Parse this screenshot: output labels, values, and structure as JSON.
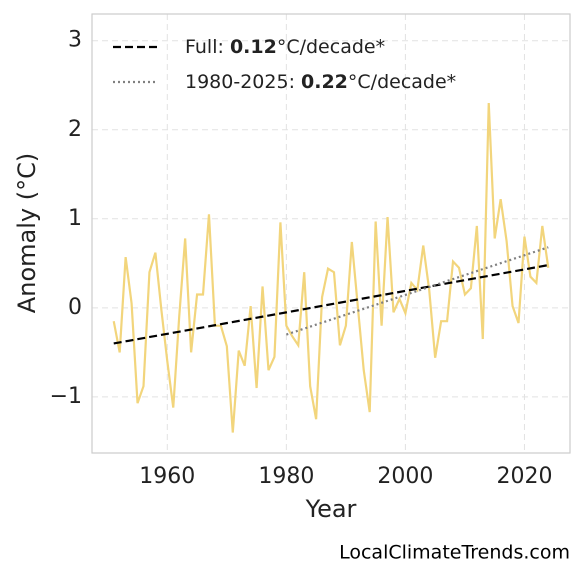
{
  "chart_data": {
    "type": "line",
    "xlabel": "Year",
    "ylabel": "Anomaly (°C)",
    "source": "LocalClimateTrends.com",
    "x": [
      1951,
      1952,
      1953,
      1954,
      1955,
      1956,
      1957,
      1958,
      1959,
      1960,
      1961,
      1962,
      1963,
      1964,
      1965,
      1966,
      1967,
      1968,
      1969,
      1970,
      1971,
      1972,
      1973,
      1974,
      1975,
      1976,
      1977,
      1978,
      1979,
      1980,
      1981,
      1982,
      1983,
      1984,
      1985,
      1986,
      1987,
      1988,
      1989,
      1990,
      1991,
      1992,
      1993,
      1994,
      1995,
      1996,
      1997,
      1998,
      1999,
      2000,
      2001,
      2002,
      2003,
      2004,
      2005,
      2006,
      2007,
      2008,
      2009,
      2010,
      2011,
      2012,
      2013,
      2014,
      2015,
      2016,
      2017,
      2018,
      2019,
      2020,
      2021,
      2022,
      2023,
      2024
    ],
    "series": [
      {
        "color": "#f2d57c",
        "style": "solid",
        "values": [
          -0.15,
          -0.5,
          0.57,
          0.05,
          -1.07,
          -0.88,
          0.4,
          0.62,
          -0.02,
          -0.6,
          -1.12,
          -0.1,
          0.78,
          -0.5,
          0.15,
          0.15,
          1.05,
          -0.2,
          -0.2,
          -0.43,
          -1.4,
          -0.48,
          -0.65,
          0.02,
          -0.9,
          0.24,
          -0.7,
          -0.55,
          0.96,
          -0.2,
          -0.32,
          -0.42,
          0.4,
          -0.88,
          -1.25,
          0.12,
          0.44,
          0.4,
          -0.42,
          -0.2,
          0.74,
          0.02,
          -0.7,
          -1.17,
          0.97,
          -0.2,
          1.02,
          -0.05,
          0.1,
          -0.06,
          0.28,
          0.2,
          0.7,
          0.2,
          -0.56,
          -0.15,
          -0.15,
          0.52,
          0.45,
          0.15,
          0.22,
          0.92,
          -0.35,
          2.3,
          0.78,
          1.22,
          0.75,
          0.02,
          -0.17,
          0.8,
          0.35,
          0.28,
          0.92,
          0.45
        ]
      },
      {
        "name": "Full: 0.12°C/decade*",
        "color": "#000000",
        "style": "dashed",
        "x": [
          1951,
          2024
        ],
        "values": [
          -0.4,
          0.48
        ]
      },
      {
        "name": "1980-2025: 0.22°C/decade*",
        "color": "#808080",
        "style": "dotted",
        "x": [
          1980,
          2024
        ],
        "values": [
          -0.3,
          0.68
        ]
      }
    ],
    "xlim": [
      1947.35,
      2027.65
    ],
    "xticks": [
      1960,
      1980,
      2000,
      2020
    ],
    "ylim": [
      -1.63,
      3.3
    ],
    "yticks": [
      {
        "value": -1,
        "label": "−1"
      },
      0,
      1,
      2,
      3
    ],
    "grid": true,
    "legend": "upper left"
  }
}
